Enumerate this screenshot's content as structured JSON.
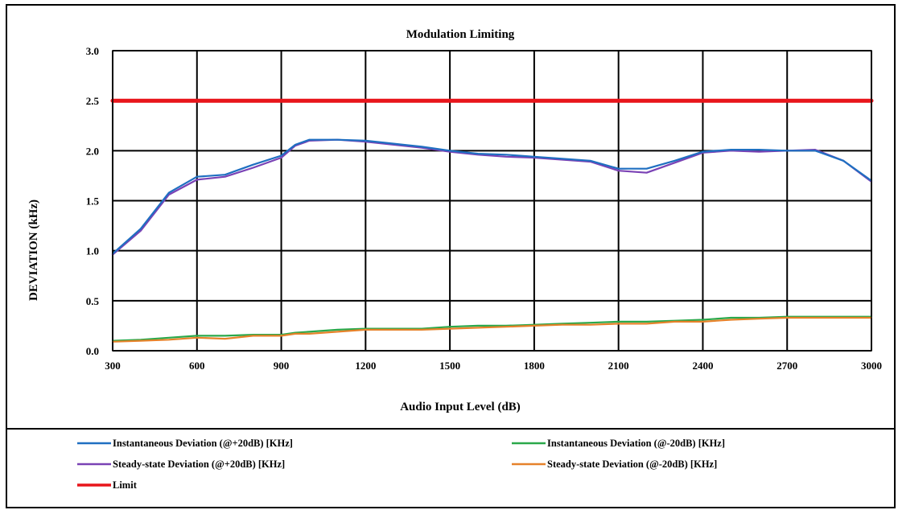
{
  "chart_data": {
    "type": "line",
    "title": "Modulation Limiting",
    "xlabel": "Audio Input Level (dB)",
    "ylabel": "DEVIATION (kHz)",
    "x_tick_labels": [
      "300",
      "600",
      "900",
      "1200",
      "1500",
      "1800",
      "2100",
      "2400",
      "2700",
      "3000"
    ],
    "y_tick_labels": [
      "0.0",
      "0.5",
      "1.0",
      "1.5",
      "2.0",
      "2.5",
      "3.0"
    ],
    "xlim": [
      300,
      3000
    ],
    "ylim": [
      0,
      3.0
    ],
    "grid": true,
    "legend_position": "bottom",
    "x": [
      300,
      400,
      500,
      600,
      700,
      800,
      900,
      950,
      1000,
      1100,
      1200,
      1300,
      1400,
      1500,
      1600,
      1700,
      1800,
      1900,
      2000,
      2100,
      2200,
      2300,
      2400,
      2500,
      2600,
      2700,
      2800,
      2900,
      3000
    ],
    "series": [
      {
        "name": "Instantaneous Deviation (@+20dB) [KHz]",
        "color": "#1f6fc1",
        "values": [
          0.97,
          1.22,
          1.58,
          1.74,
          1.76,
          1.86,
          1.95,
          2.06,
          2.11,
          2.11,
          2.1,
          2.07,
          2.04,
          2.0,
          1.97,
          1.96,
          1.94,
          1.92,
          1.9,
          1.82,
          1.82,
          1.9,
          1.99,
          2.01,
          2.01,
          2.0,
          2.0,
          1.9,
          1.7
        ]
      },
      {
        "name": "Instantaneous Deviation (@-20dB) [KHz]",
        "color": "#2aa84a",
        "values": [
          0.1,
          0.11,
          0.13,
          0.15,
          0.15,
          0.16,
          0.16,
          0.18,
          0.19,
          0.21,
          0.22,
          0.22,
          0.22,
          0.24,
          0.25,
          0.25,
          0.26,
          0.27,
          0.28,
          0.29,
          0.29,
          0.3,
          0.31,
          0.33,
          0.33,
          0.34,
          0.34,
          0.34,
          0.34
        ]
      },
      {
        "name": "Steady-state Deviation (@+20dB) [KHz]",
        "color": "#7a42b5",
        "values": [
          0.96,
          1.2,
          1.56,
          1.71,
          1.74,
          1.83,
          1.93,
          2.05,
          2.1,
          2.11,
          2.09,
          2.06,
          2.03,
          1.99,
          1.96,
          1.94,
          1.93,
          1.91,
          1.89,
          1.8,
          1.78,
          1.88,
          1.98,
          2.0,
          1.99,
          2.0,
          2.01,
          1.9,
          1.69
        ]
      },
      {
        "name": "Steady-state Deviation (@-20dB) [KHz]",
        "color": "#e6822a",
        "values": [
          0.09,
          0.1,
          0.11,
          0.13,
          0.12,
          0.15,
          0.15,
          0.17,
          0.17,
          0.19,
          0.21,
          0.21,
          0.21,
          0.22,
          0.23,
          0.24,
          0.25,
          0.26,
          0.26,
          0.27,
          0.27,
          0.29,
          0.29,
          0.31,
          0.32,
          0.33,
          0.33,
          0.33,
          0.33
        ]
      },
      {
        "name": "Limit",
        "color": "#e8151b",
        "values": [
          2.5,
          2.5,
          2.5,
          2.5,
          2.5,
          2.5,
          2.5,
          2.5,
          2.5,
          2.5,
          2.5,
          2.5,
          2.5,
          2.5,
          2.5,
          2.5,
          2.5,
          2.5,
          2.5,
          2.5,
          2.5,
          2.5,
          2.5,
          2.5,
          2.5,
          2.5,
          2.5,
          2.5,
          2.5
        ]
      }
    ],
    "legend": [
      {
        "label": "Instantaneous Deviation (@+20dB) [KHz]",
        "color": "#1f6fc1"
      },
      {
        "label": "Instantaneous Deviation (@-20dB) [KHz]",
        "color": "#2aa84a"
      },
      {
        "label": "Steady-state Deviation (@+20dB) [KHz]",
        "color": "#7a42b5"
      },
      {
        "label": "Steady-state Deviation (@-20dB) [KHz]",
        "color": "#e6822a"
      },
      {
        "label": "Limit",
        "color": "#e8151b"
      }
    ]
  }
}
